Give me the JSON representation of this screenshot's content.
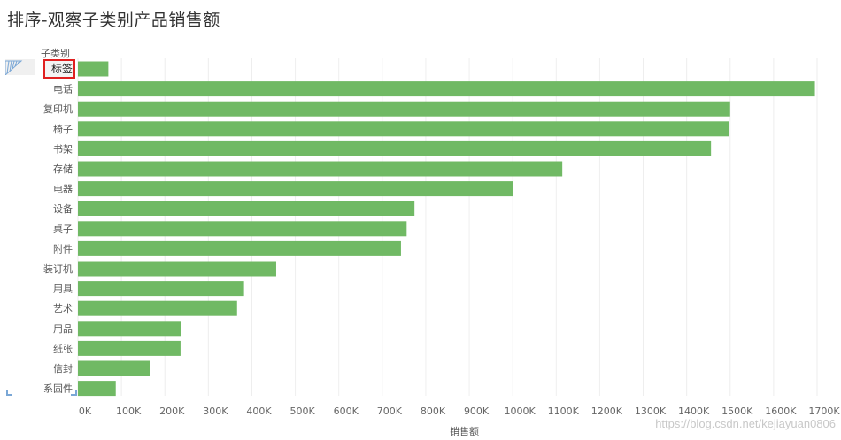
{
  "title": "排序-观察子类别产品销售额",
  "rows_header": "子类别",
  "watermark": "https://blog.csdn.net/kejiayuan0806",
  "colors": {
    "bar": "#70b964",
    "grid": "#eeeeee",
    "highlight": "#e02020"
  },
  "chart_data": {
    "type": "bar",
    "orientation": "horizontal",
    "categories": [
      "标签",
      "电话",
      "复印机",
      "椅子",
      "书架",
      "存储",
      "电器",
      "设备",
      "桌子",
      "附件",
      "装订机",
      "用具",
      "艺术",
      "用品",
      "纸张",
      "信封",
      "系固件"
    ],
    "values": [
      70000,
      1695000,
      1500000,
      1497000,
      1456000,
      1114000,
      1000000,
      774000,
      756000,
      743000,
      456000,
      382000,
      366000,
      238000,
      236000,
      166000,
      87000
    ],
    "xlabel": "销售额",
    "xlim": [
      0,
      1700000
    ],
    "ticks": [
      0,
      100000,
      200000,
      300000,
      400000,
      500000,
      600000,
      700000,
      800000,
      900000,
      1000000,
      1100000,
      1200000,
      1300000,
      1400000,
      1500000,
      1600000,
      1700000
    ],
    "tick_labels": [
      "0K",
      "100K",
      "200K",
      "300K",
      "400K",
      "500K",
      "600K",
      "700K",
      "800K",
      "900K",
      "1000K",
      "1100K",
      "1200K",
      "1300K",
      "1400K",
      "1500K",
      "1600K",
      "1700K"
    ],
    "highlighted_category": "标签",
    "grid": true
  }
}
